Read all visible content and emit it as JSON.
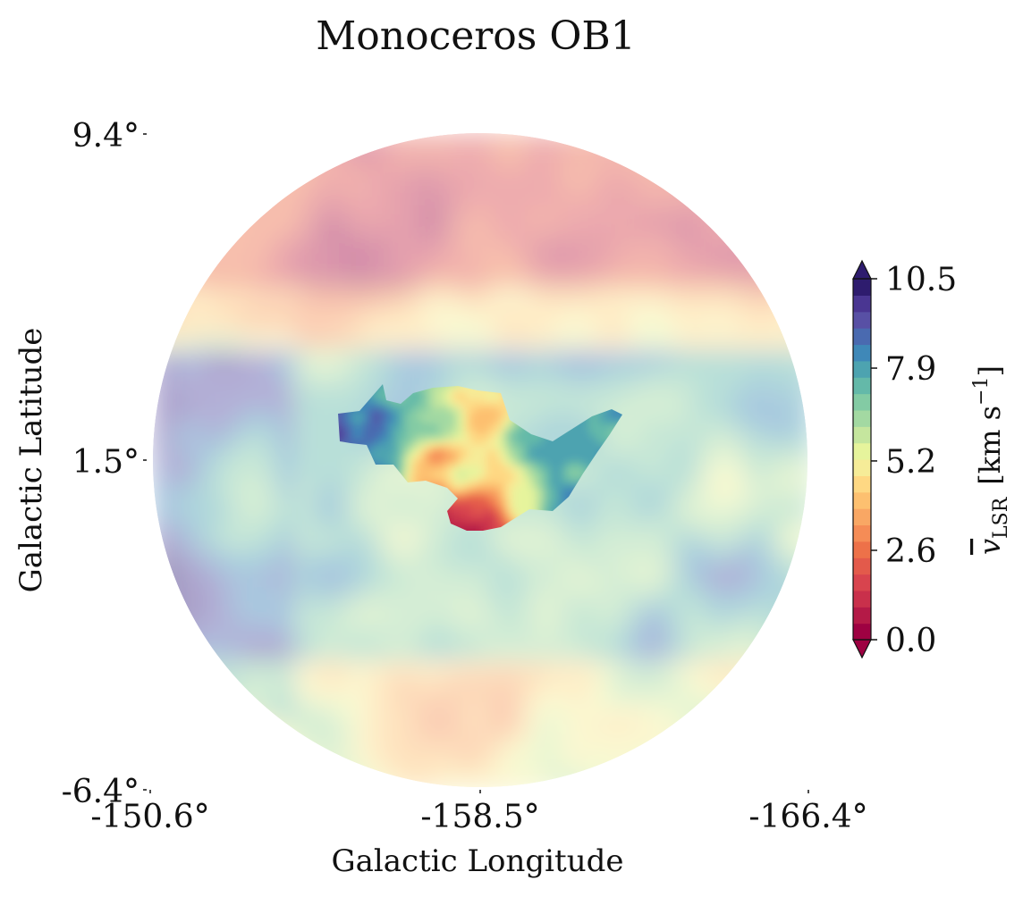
{
  "chart_data": {
    "type": "heatmap",
    "title": "Monoceros OB1",
    "xlabel": "Galactic Longitude",
    "ylabel": "Galactic Latitude",
    "x_ticks": [
      "-150.6°",
      "-158.5°",
      "-166.4°"
    ],
    "y_ticks": [
      "9.4°",
      "1.5°",
      "-6.4°"
    ],
    "xlim": [
      -150.6,
      -166.4
    ],
    "ylim": [
      -6.4,
      9.4
    ],
    "grid": false,
    "footprint": "circular",
    "colorbar": {
      "label_symbol": "v",
      "label_subscript": "LSR",
      "label_units_pre": "[km s",
      "label_units_sup": "−1",
      "label_units_post": "]",
      "ticks": [
        "0.0",
        "2.6",
        "5.2",
        "7.9",
        "10.5"
      ],
      "range": [
        0.0,
        10.5
      ],
      "extend": "both",
      "colormap": "Spectral",
      "colors": [
        "#9e0142",
        "#b41a47",
        "#c9304b",
        "#d8444e",
        "#e35a4b",
        "#ed7149",
        "#f58c56",
        "#f9a764",
        "#fdc070",
        "#fed883",
        "#f6ec98",
        "#e6f49c",
        "#c5e69e",
        "#a3d9a2",
        "#83cba4",
        "#64b9a9",
        "#4da3b0",
        "#3f88b8",
        "#4a6ab0",
        "#5850a5",
        "#4a3692",
        "#2e1c6e"
      ]
    },
    "background_level": "faded (semi-transparent) full field",
    "highlight_region": "full-opacity velocity map of the central cloud"
  }
}
